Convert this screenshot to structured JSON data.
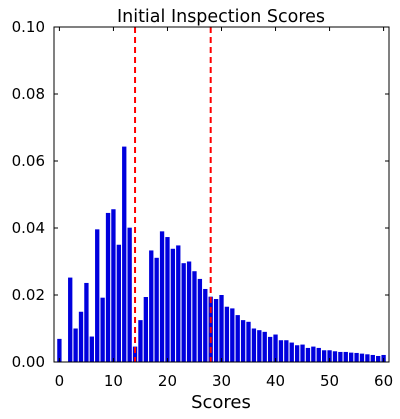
{
  "chart_data": {
    "type": "bar",
    "title": "Initial Inspection Scores",
    "xlabel": "Scores",
    "ylabel": "",
    "xlim": [
      -1,
      61
    ],
    "ylim": [
      0,
      0.1
    ],
    "xticks": [
      0,
      10,
      20,
      30,
      40,
      50,
      60
    ],
    "xtick_labels": [
      "0",
      "10",
      "20",
      "30",
      "40",
      "50",
      "60"
    ],
    "yticks": [
      0,
      0.02,
      0.04,
      0.06,
      0.08,
      0.1
    ],
    "ytick_labels": [
      "0.00",
      "0.02",
      "0.04",
      "0.06",
      "0.08",
      "0.10"
    ],
    "grid": false,
    "bar_color": "#0000dd",
    "x": [
      0,
      1,
      2,
      3,
      4,
      5,
      6,
      7,
      8,
      9,
      10,
      11,
      12,
      13,
      14,
      15,
      16,
      17,
      18,
      19,
      20,
      21,
      22,
      23,
      24,
      25,
      26,
      27,
      28,
      29,
      30,
      31,
      32,
      33,
      34,
      35,
      36,
      37,
      38,
      39,
      40,
      41,
      42,
      43,
      44,
      45,
      46,
      47,
      48,
      49,
      50,
      51,
      52,
      53,
      54,
      55,
      56,
      57,
      58,
      59,
      60
    ],
    "values": [
      0.0069,
      0,
      0.0252,
      0.01,
      0.015,
      0.0236,
      0.0076,
      0.0396,
      0.0192,
      0.0445,
      0.0456,
      0.035,
      0.0643,
      0.0401,
      0.0046,
      0.0125,
      0.0194,
      0.0333,
      0.0311,
      0.039,
      0.0373,
      0.0338,
      0.0348,
      0.0295,
      0.03,
      0.0271,
      0.0248,
      0.0218,
      0.0195,
      0.0188,
      0.02,
      0.0165,
      0.016,
      0.014,
      0.0125,
      0.012,
      0.01,
      0.0095,
      0.009,
      0.0075,
      0.0082,
      0.0065,
      0.0065,
      0.0058,
      0.005,
      0.0052,
      0.0042,
      0.0046,
      0.0042,
      0.0035,
      0.0035,
      0.0032,
      0.003,
      0.003,
      0.0028,
      0.0027,
      0.0025,
      0.0023,
      0.0021,
      0.0018,
      0.0021
    ],
    "vlines": [
      {
        "x": 14,
        "color": "#ff0000",
        "style": "dashed"
      },
      {
        "x": 28,
        "color": "#ff0000",
        "style": "dashed"
      }
    ]
  }
}
